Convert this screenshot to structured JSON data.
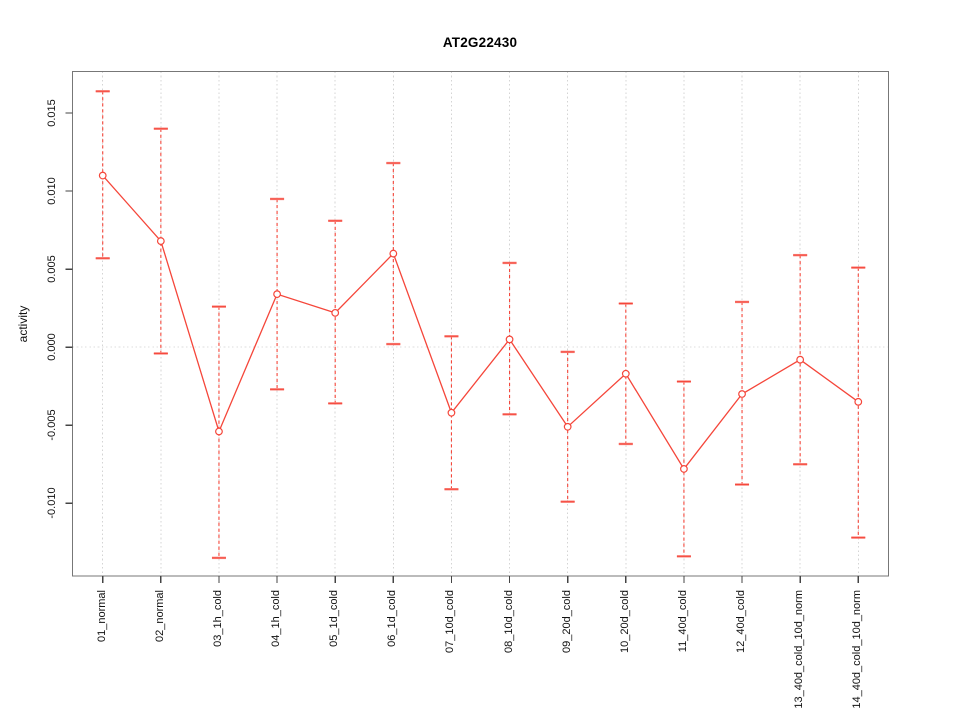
{
  "chart_data": {
    "type": "line",
    "title": "AT2G22430",
    "xlabel": "",
    "ylabel": "activity",
    "legend_position": "none",
    "categories": [
      "01_normal",
      "02_normal",
      "03_1h_cold",
      "04_1h_cold",
      "05_1d_cold",
      "06_1d_cold",
      "07_10d_cold",
      "08_10d_cold",
      "09_20d_cold",
      "10_20d_cold",
      "11_40d_cold",
      "12_40d_cold",
      "13_40d_cold_10d_norm",
      "14_40d_cold_10d_norm"
    ],
    "series": [
      {
        "name": "activity",
        "marker": "open-circle",
        "values": [
          0.011,
          0.0068,
          -0.0054,
          0.0034,
          0.0022,
          0.006,
          -0.0042,
          0.0005,
          -0.0051,
          -0.0017,
          -0.0078,
          -0.003,
          -0.0008,
          -0.0035
        ],
        "lower": [
          0.0057,
          -0.0004,
          -0.0135,
          -0.0027,
          -0.0036,
          0.0002,
          -0.0091,
          -0.0043,
          -0.0099,
          -0.0062,
          -0.0134,
          -0.0088,
          -0.0075,
          -0.0122
        ],
        "upper": [
          0.0164,
          0.014,
          0.0026,
          0.0095,
          0.0081,
          0.0118,
          0.0007,
          0.0054,
          -0.0003,
          0.0028,
          -0.0022,
          0.0029,
          0.0059,
          0.0051
        ]
      }
    ],
    "ytick_labels": [
      "0.015",
      "0.010",
      "0.005",
      "0.000",
      "-0.005",
      "-0.010"
    ],
    "ytick_values": [
      0.015,
      0.01,
      0.005,
      0.0,
      -0.005,
      -0.01
    ],
    "ylim": [
      -0.014661,
      0.017667
    ],
    "zero_line": 0,
    "grid": {
      "vertical": "dotted line at every category",
      "horizontal": "dotted line at zero only"
    },
    "colors": {
      "line": "#f5463a",
      "cap": "#f9867e",
      "marker_fill": "#ffffff",
      "grid": "#d4d4d4",
      "zero_grid": "#dedede",
      "box": "#777777",
      "tick": "#444444",
      "text": "#111111"
    }
  }
}
